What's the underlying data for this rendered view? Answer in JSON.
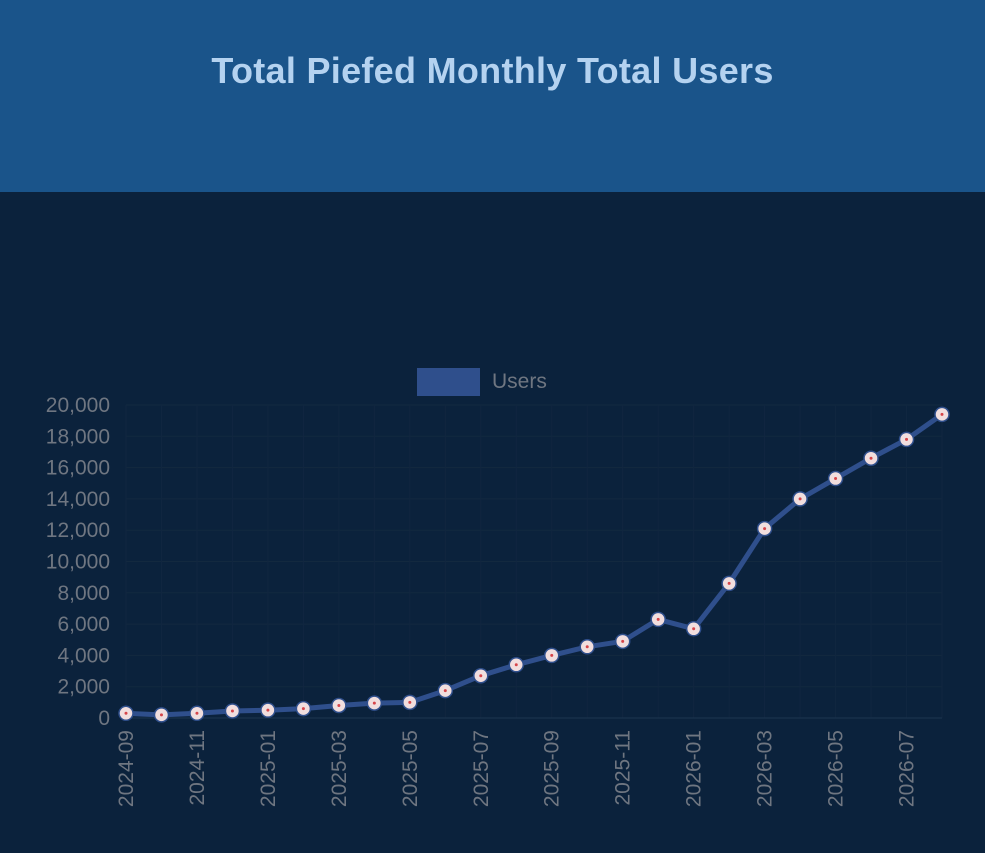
{
  "title": "Total Piefed Monthly Total Users",
  "colors": {
    "header_bg": "#1a548a",
    "title": "#b4d2f0",
    "plot_bg": "#0b223c",
    "line": "#2f4f8c",
    "point_fill": "#f1dede",
    "point_center": "#d6454a",
    "tick_text": "#6f7681"
  },
  "chart_data": {
    "type": "line",
    "title": "",
    "legend": [
      "Users"
    ],
    "legend_position": "top",
    "grid": true,
    "xlabel": "",
    "ylabel": "",
    "ylim": [
      0,
      20000
    ],
    "y_ticks": [
      "0",
      "2,000",
      "4,000",
      "6,000",
      "8,000",
      "10,000",
      "12,000",
      "14,000",
      "16,000",
      "18,000",
      "20,000"
    ],
    "x_tick_labels": [
      "2024-09",
      "2024-11",
      "2025-01",
      "2025-03",
      "2025-05",
      "2025-07",
      "2025-09",
      "2025-11",
      "2026-01",
      "2026-03",
      "2026-05",
      "2026-07"
    ],
    "x": [
      "2024-09",
      "2024-10",
      "2024-11",
      "2024-12",
      "2025-01",
      "2025-02",
      "2025-03",
      "2025-04",
      "2025-05",
      "2025-06",
      "2025-07",
      "2025-08",
      "2025-09",
      "2025-10",
      "2025-11",
      "2025-12",
      "2026-01",
      "2026-02",
      "2026-03",
      "2026-04",
      "2026-05",
      "2026-06",
      "2026-07",
      "2026-08"
    ],
    "series": [
      {
        "name": "Users",
        "values": [
          300,
          200,
          300,
          450,
          500,
          600,
          800,
          950,
          1000,
          1750,
          2700,
          3400,
          4000,
          4550,
          4900,
          6300,
          5700,
          8600,
          12100,
          14000,
          15300,
          16600,
          17800,
          19400
        ]
      }
    ]
  }
}
